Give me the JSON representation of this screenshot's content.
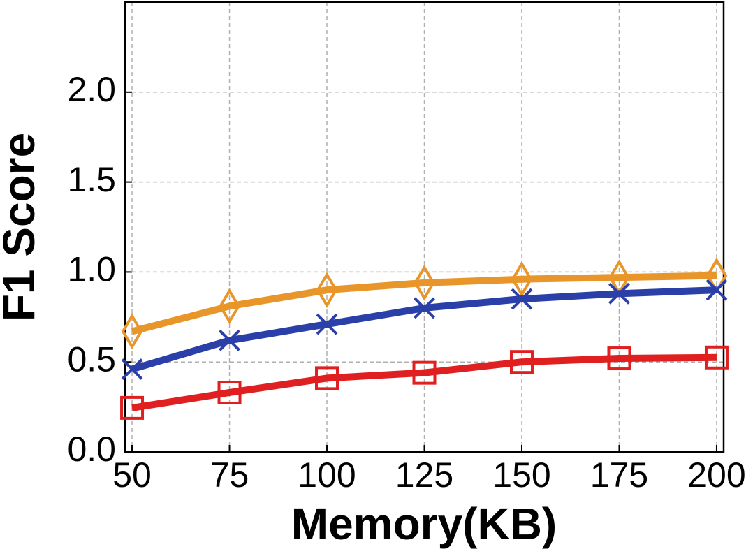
{
  "chart_data": {
    "type": "line",
    "x_label": "Memory(KB)",
    "y_label": "F1 Score",
    "x": [
      50,
      75,
      100,
      125,
      150,
      175,
      200
    ],
    "series": [
      {
        "color": "#e8962a",
        "marker": "diamond",
        "values": [
          0.67,
          0.81,
          0.9,
          0.94,
          0.96,
          0.97,
          0.98
        ]
      },
      {
        "color": "#2a3fa8",
        "marker": "x",
        "values": [
          0.46,
          0.62,
          0.71,
          0.8,
          0.85,
          0.88,
          0.9
        ]
      },
      {
        "color": "#e02020",
        "marker": "square",
        "values": [
          0.245,
          0.33,
          0.41,
          0.44,
          0.5,
          0.52,
          0.525
        ]
      }
    ],
    "xlim": [
      48.2,
      201.8
    ],
    "xticks": [
      50,
      75,
      100,
      125,
      150,
      175,
      200
    ],
    "ylim": [
      0,
      2.5
    ],
    "yticks": [
      {
        "value": 0,
        "label": "0.0"
      },
      0.5,
      {
        "value": 1,
        "label": "1.0"
      },
      1.5,
      {
        "value": 2,
        "label": "2.0"
      }
    ],
    "grid": true
  }
}
